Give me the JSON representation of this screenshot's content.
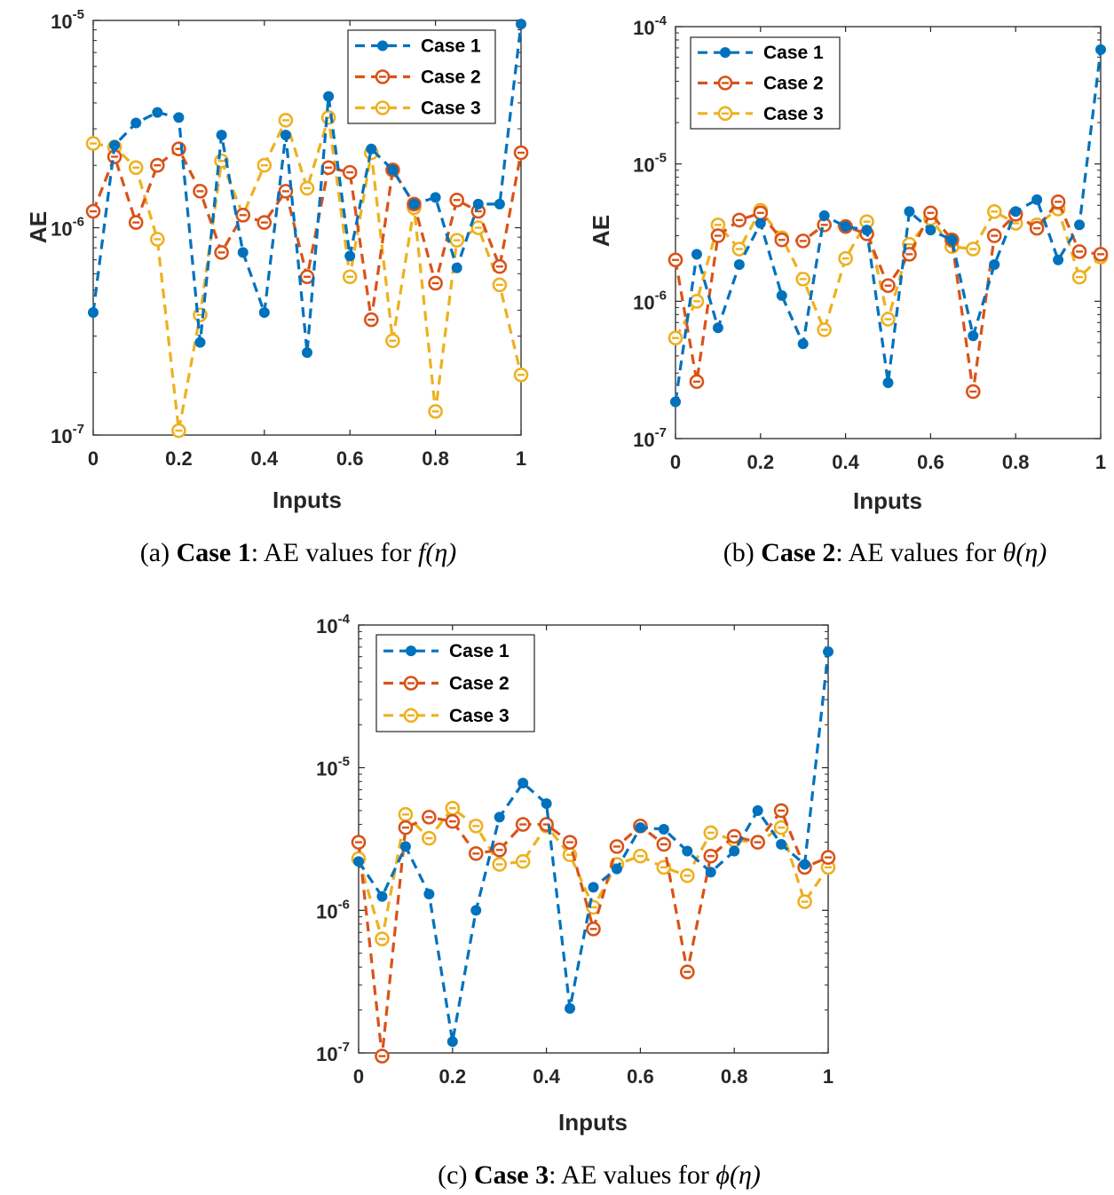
{
  "chart_data": [
    {
      "type": "line",
      "panel": "a",
      "title": "",
      "xlabel": "Inputs",
      "ylabel": "AE",
      "yscale": "log",
      "xlim": [
        0,
        1
      ],
      "ylim": [
        1e-07,
        1e-05
      ],
      "x_ticks": [
        "0",
        "0.2",
        "0.4",
        "0.6",
        "0.8",
        "1"
      ],
      "y_ticks": [
        {
          "base": "10",
          "exp": "-7"
        },
        {
          "base": "10",
          "exp": "-6"
        },
        {
          "base": "10",
          "exp": "-5"
        }
      ],
      "legend_position": "top-right",
      "caption": {
        "prefix": "(a) ",
        "bold": "Case 1",
        "text": ": AE values for ",
        "math": "f(η)"
      },
      "x": [
        0,
        0.05,
        0.1,
        0.15,
        0.2,
        0.25,
        0.3,
        0.35,
        0.4,
        0.45,
        0.5,
        0.55,
        0.6,
        0.65,
        0.7,
        0.75,
        0.8,
        0.85,
        0.9,
        0.95,
        1
      ],
      "series": [
        {
          "name": "Case 1",
          "color": "#0072BD",
          "marker": "filled",
          "values": [
            3.9e-07,
            2.5e-06,
            3.2e-06,
            3.6e-06,
            3.4e-06,
            2.8e-07,
            2.8e-06,
            7.6e-07,
            3.9e-07,
            2.8e-06,
            2.5e-07,
            4.3e-06,
            7.3e-07,
            2.4e-06,
            1.9e-06,
            1.3e-06,
            1.4e-06,
            6.4e-07,
            1.3e-06,
            1.3e-06,
            9.6e-06
          ]
        },
        {
          "name": "Case 2",
          "color": "#D95319",
          "marker": "open",
          "values": [
            1.2e-06,
            2.2e-06,
            1.06e-06,
            2e-06,
            2.4e-06,
            1.5e-06,
            7.6e-07,
            1.15e-06,
            1.06e-06,
            1.5e-06,
            5.8e-07,
            1.95e-06,
            1.85e-06,
            3.6e-07,
            1.9e-06,
            1.3e-06,
            5.4e-07,
            1.36e-06,
            1.2e-06,
            6.5e-07,
            2.3e-06
          ]
        },
        {
          "name": "Case 3",
          "color": "#EDB120",
          "marker": "open",
          "values": [
            2.55e-06,
            2.45e-06,
            1.95e-06,
            8.8e-07,
            1.05e-07,
            3.8e-07,
            2.1e-06,
            1.15e-06,
            2e-06,
            3.3e-06,
            1.55e-06,
            3.4e-06,
            5.8e-07,
            2.3e-06,
            2.85e-07,
            1.25e-06,
            1.3e-07,
            8.7e-07,
            1e-06,
            5.3e-07,
            1.95e-07
          ]
        }
      ]
    },
    {
      "type": "line",
      "panel": "b",
      "title": "",
      "xlabel": "Inputs",
      "ylabel": "AE",
      "yscale": "log",
      "xlim": [
        0,
        1
      ],
      "ylim": [
        1e-07,
        0.0001
      ],
      "x_ticks": [
        "0",
        "0.2",
        "0.4",
        "0.6",
        "0.8",
        "1"
      ],
      "y_ticks": [
        {
          "base": "10",
          "exp": "-7"
        },
        {
          "base": "10",
          "exp": "-6"
        },
        {
          "base": "10",
          "exp": "-5"
        },
        {
          "base": "10",
          "exp": "-4"
        }
      ],
      "legend_position": "top-left",
      "caption": {
        "prefix": "(b) ",
        "bold": "Case 2",
        "text": ": AE values for ",
        "math": "θ(η)"
      },
      "x": [
        0,
        0.05,
        0.1,
        0.15,
        0.2,
        0.25,
        0.3,
        0.35,
        0.4,
        0.45,
        0.5,
        0.55,
        0.6,
        0.65,
        0.7,
        0.75,
        0.8,
        0.85,
        0.9,
        0.95,
        1
      ],
      "series": [
        {
          "name": "Case 1",
          "color": "#0072BD",
          "marker": "filled",
          "values": [
            1.85e-07,
            2.2e-06,
            6.4e-07,
            1.85e-06,
            3.7e-06,
            1.1e-06,
            4.9e-07,
            4.2e-06,
            3.5e-06,
            3.3e-06,
            2.55e-07,
            4.5e-06,
            3.3e-06,
            2.8e-06,
            5.6e-07,
            1.85e-06,
            4.5e-06,
            5.5e-06,
            2e-06,
            3.6e-06,
            6.8e-05
          ]
        },
        {
          "name": "Case 2",
          "color": "#D95319",
          "marker": "open",
          "values": [
            2e-06,
            2.6e-07,
            3e-06,
            3.9e-06,
            4.4e-06,
            2.8e-06,
            2.75e-06,
            3.6e-06,
            3.5e-06,
            3.1e-06,
            1.3e-06,
            2.2e-06,
            4.4e-06,
            2.8e-06,
            2.2e-07,
            3e-06,
            4.3e-06,
            3.4e-06,
            5.3e-06,
            2.3e-06,
            2.2e-06
          ]
        },
        {
          "name": "Case 3",
          "color": "#EDB120",
          "marker": "open",
          "values": [
            5.4e-07,
            1e-06,
            3.6e-06,
            2.4e-06,
            4.6e-06,
            2.9e-06,
            1.45e-06,
            6.2e-07,
            2.05e-06,
            3.8e-06,
            7.4e-07,
            2.6e-06,
            4e-06,
            2.5e-06,
            2.4e-06,
            4.5e-06,
            3.7e-06,
            3.6e-06,
            4.7e-06,
            1.5e-06,
            2.1e-06
          ]
        }
      ]
    },
    {
      "type": "line",
      "panel": "c",
      "title": "",
      "xlabel": "Inputs",
      "ylabel": "",
      "yscale": "log",
      "xlim": [
        0,
        1
      ],
      "ylim": [
        1e-07,
        0.0001
      ],
      "x_ticks": [
        "0",
        "0.2",
        "0.4",
        "0.6",
        "0.8",
        "1"
      ],
      "y_ticks": [
        {
          "base": "10",
          "exp": "-7"
        },
        {
          "base": "10",
          "exp": "-6"
        },
        {
          "base": "10",
          "exp": "-5"
        },
        {
          "base": "10",
          "exp": "-4"
        }
      ],
      "legend_position": "top-left",
      "caption": {
        "prefix": "(c) ",
        "bold": "Case 3",
        "text": ": AE values for ",
        "math": "ϕ(η)"
      },
      "x": [
        0,
        0.05,
        0.1,
        0.15,
        0.2,
        0.25,
        0.3,
        0.35,
        0.4,
        0.45,
        0.5,
        0.55,
        0.6,
        0.65,
        0.7,
        0.75,
        0.8,
        0.85,
        0.9,
        0.95,
        1
      ],
      "series": [
        {
          "name": "Case 1",
          "color": "#0072BD",
          "marker": "filled",
          "values": [
            2.2e-06,
            1.25e-06,
            2.8e-06,
            1.3e-06,
            1.2e-07,
            1e-06,
            4.5e-06,
            7.8e-06,
            5.6e-06,
            2.05e-07,
            1.45e-06,
            1.95e-06,
            3.8e-06,
            3.7e-06,
            2.6e-06,
            1.85e-06,
            2.6e-06,
            5e-06,
            2.9e-06,
            2.1e-06,
            6.5e-05
          ]
        },
        {
          "name": "Case 2",
          "color": "#D95319",
          "marker": "open",
          "values": [
            3e-06,
            9.5e-08,
            3.8e-06,
            4.5e-06,
            4.2e-06,
            2.5e-06,
            2.65e-06,
            4e-06,
            4e-06,
            3e-06,
            7.4e-07,
            2.8e-06,
            3.9e-06,
            2.9e-06,
            3.7e-07,
            2.4e-06,
            3.3e-06,
            3e-06,
            5e-06,
            2e-06,
            2.35e-06
          ]
        },
        {
          "name": "Case 3",
          "color": "#EDB120",
          "marker": "open",
          "values": [
            2.3e-06,
            6.3e-07,
            4.7e-06,
            3.2e-06,
            5.2e-06,
            3.9e-06,
            2.1e-06,
            2.2e-06,
            3.9e-06,
            2.45e-06,
            1.05e-06,
            2.1e-06,
            2.4e-06,
            2e-06,
            1.75e-06,
            3.5e-06,
            3.1e-06,
            3e-06,
            3.8e-06,
            1.15e-06,
            2e-06
          ]
        }
      ]
    }
  ]
}
